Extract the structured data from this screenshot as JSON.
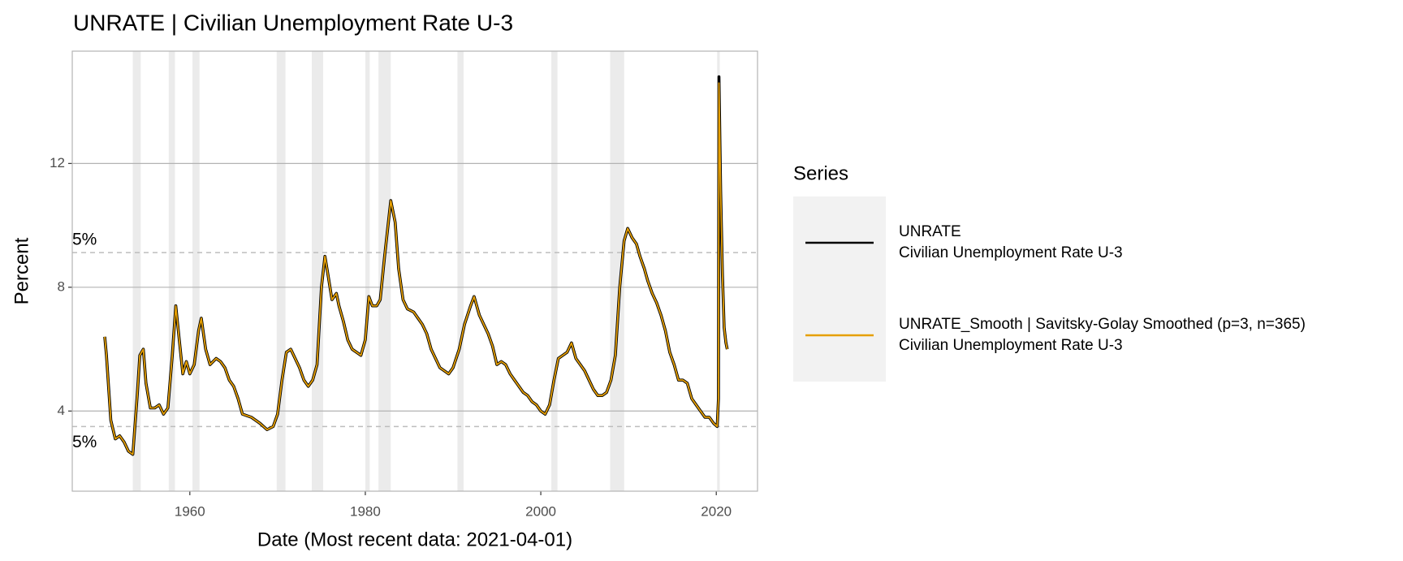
{
  "chart_data": {
    "type": "line",
    "title": "UNRATE | Civilian Unemployment Rate U-3",
    "x_label": "Date (Most recent data: 2021-04-01)",
    "y_label": "Percent",
    "legend_title": "Series",
    "legend_position": "right",
    "grid": true,
    "xlim": [
      1946.6,
      2024.7
    ],
    "xticks": [
      1960,
      1980,
      2000,
      2020
    ],
    "ylim": [
      1.41,
      15.63
    ],
    "yticks": [
      4,
      8,
      12
    ],
    "recessions": [
      [
        1953.5,
        1954.4
      ],
      [
        1957.6,
        1958.3
      ],
      [
        1960.3,
        1961.1
      ],
      [
        1969.9,
        1970.9
      ],
      [
        1973.9,
        1975.2
      ],
      [
        1980.0,
        1980.5
      ],
      [
        1981.5,
        1982.9
      ],
      [
        1990.5,
        1991.2
      ],
      [
        2001.2,
        2001.9
      ],
      [
        2007.9,
        2009.5
      ],
      [
        2020.1,
        2020.4
      ]
    ],
    "hlines": [
      {
        "value": 9.12,
        "label": "5%"
      },
      {
        "value": 3.5,
        "label": "5%"
      }
    ],
    "x": [
      1950.3,
      1950.5,
      1951,
      1951.5,
      1952,
      1952.5,
      1953,
      1953.5,
      1954.0,
      1954.3,
      1954.7,
      1955,
      1955.5,
      1956,
      1956.5,
      1957,
      1957.5,
      1958,
      1958.4,
      1958.8,
      1959.2,
      1959.6,
      1960,
      1960.5,
      1961,
      1961.3,
      1961.8,
      1962.3,
      1963,
      1963.5,
      1964,
      1964.5,
      1965,
      1965.5,
      1966,
      1967,
      1968,
      1968.8,
      1969.5,
      1970,
      1970.5,
      1971,
      1971.5,
      1972,
      1972.5,
      1973,
      1973.5,
      1974,
      1974.5,
      1975,
      1975.4,
      1975.8,
      1976.2,
      1976.7,
      1977,
      1977.5,
      1978,
      1978.5,
      1979,
      1979.5,
      1980,
      1980.4,
      1980.8,
      1981.3,
      1981.7,
      1982.2,
      1982.9,
      1983.4,
      1983.8,
      1984.3,
      1984.8,
      1985.5,
      1986,
      1986.5,
      1987,
      1987.5,
      1988,
      1988.5,
      1989,
      1989.5,
      1990,
      1990.7,
      1991.3,
      1992,
      1992.4,
      1993,
      1993.5,
      1994,
      1994.5,
      1995,
      1995.5,
      1996,
      1996.5,
      1997,
      1997.5,
      1998,
      1998.5,
      1999,
      1999.5,
      2000,
      2000.5,
      2001,
      2001.5,
      2002,
      2002.5,
      2003,
      2003.5,
      2004,
      2004.5,
      2005,
      2005.5,
      2006,
      2006.5,
      2007,
      2007.5,
      2008,
      2008.5,
      2009,
      2009.5,
      2009.9,
      2010.4,
      2010.9,
      2011.3,
      2011.8,
      2012.2,
      2012.7,
      2013.2,
      2013.7,
      2014.2,
      2014.7,
      2015.2,
      2015.7,
      2016.2,
      2016.7,
      2017.2,
      2017.7,
      2018.2,
      2018.7,
      2019.2,
      2019.7,
      2020.1,
      2020.25,
      2020.3,
      2020.5,
      2020.7,
      2020.9,
      2021.1,
      2021.25
    ],
    "series": [
      {
        "name": "UNRATE",
        "description": "Civilian Unemployment Rate U-3",
        "color": "#000000",
        "values": [
          6.4,
          5.8,
          3.7,
          3.1,
          3.2,
          3.0,
          2.7,
          2.6,
          4.5,
          5.8,
          6.0,
          4.9,
          4.1,
          4.1,
          4.2,
          3.9,
          4.1,
          5.8,
          7.4,
          6.3,
          5.2,
          5.6,
          5.2,
          5.5,
          6.6,
          7.0,
          6.0,
          5.5,
          5.7,
          5.6,
          5.4,
          5.0,
          4.8,
          4.4,
          3.9,
          3.8,
          3.6,
          3.4,
          3.5,
          3.9,
          5.0,
          5.9,
          6.0,
          5.7,
          5.4,
          5.0,
          4.8,
          5.0,
          5.5,
          8.0,
          9.0,
          8.3,
          7.6,
          7.8,
          7.4,
          6.9,
          6.3,
          6.0,
          5.9,
          5.8,
          6.3,
          7.7,
          7.4,
          7.4,
          7.6,
          9.0,
          10.8,
          10.1,
          8.6,
          7.6,
          7.3,
          7.2,
          7.0,
          6.8,
          6.5,
          6.0,
          5.7,
          5.4,
          5.3,
          5.2,
          5.4,
          6.0,
          6.8,
          7.4,
          7.7,
          7.1,
          6.8,
          6.5,
          6.1,
          5.5,
          5.6,
          5.5,
          5.2,
          5.0,
          4.8,
          4.6,
          4.5,
          4.3,
          4.2,
          4.0,
          3.9,
          4.2,
          5.0,
          5.7,
          5.8,
          5.9,
          6.2,
          5.7,
          5.5,
          5.3,
          5.0,
          4.7,
          4.5,
          4.5,
          4.6,
          5.0,
          5.8,
          8.0,
          9.5,
          9.9,
          9.6,
          9.4,
          9.0,
          8.6,
          8.2,
          7.8,
          7.5,
          7.1,
          6.6,
          5.9,
          5.5,
          5.0,
          5.0,
          4.9,
          4.4,
          4.2,
          4.0,
          3.8,
          3.8,
          3.6,
          3.5,
          4.4,
          14.8,
          11.1,
          8.4,
          6.7,
          6.2,
          6.0
        ]
      },
      {
        "name": "UNRATE_Smooth | Savitsky-Golay Smoothed (p=3, n=365)",
        "description": "Civilian Unemployment Rate U-3",
        "color": "#e69f00",
        "values": [
          6.4,
          5.8,
          3.7,
          3.1,
          3.2,
          3.0,
          2.7,
          2.6,
          4.5,
          5.8,
          6.0,
          4.9,
          4.1,
          4.1,
          4.2,
          3.9,
          4.1,
          5.8,
          7.4,
          6.3,
          5.2,
          5.6,
          5.2,
          5.5,
          6.6,
          7.0,
          6.0,
          5.5,
          5.7,
          5.6,
          5.4,
          5.0,
          4.8,
          4.4,
          3.9,
          3.8,
          3.6,
          3.4,
          3.5,
          3.9,
          5.0,
          5.9,
          6.0,
          5.7,
          5.4,
          5.0,
          4.8,
          5.0,
          5.5,
          8.0,
          9.0,
          8.3,
          7.6,
          7.8,
          7.4,
          6.9,
          6.3,
          6.0,
          5.9,
          5.8,
          6.3,
          7.7,
          7.4,
          7.4,
          7.6,
          9.0,
          10.8,
          10.1,
          8.6,
          7.6,
          7.3,
          7.2,
          7.0,
          6.8,
          6.5,
          6.0,
          5.7,
          5.4,
          5.3,
          5.2,
          5.4,
          6.0,
          6.8,
          7.4,
          7.7,
          7.1,
          6.8,
          6.5,
          6.1,
          5.5,
          5.6,
          5.5,
          5.2,
          5.0,
          4.8,
          4.6,
          4.5,
          4.3,
          4.2,
          4.0,
          3.9,
          4.2,
          5.0,
          5.7,
          5.8,
          5.9,
          6.2,
          5.7,
          5.5,
          5.3,
          5.0,
          4.7,
          4.5,
          4.5,
          4.6,
          5.0,
          5.8,
          8.0,
          9.5,
          9.9,
          9.6,
          9.4,
          9.0,
          8.6,
          8.2,
          7.8,
          7.5,
          7.1,
          6.6,
          5.9,
          5.5,
          5.0,
          5.0,
          4.9,
          4.4,
          4.2,
          4.0,
          3.8,
          3.8,
          3.6,
          3.5,
          4.4,
          14.6,
          11.1,
          8.4,
          6.7,
          6.2,
          6.0
        ]
      }
    ]
  }
}
